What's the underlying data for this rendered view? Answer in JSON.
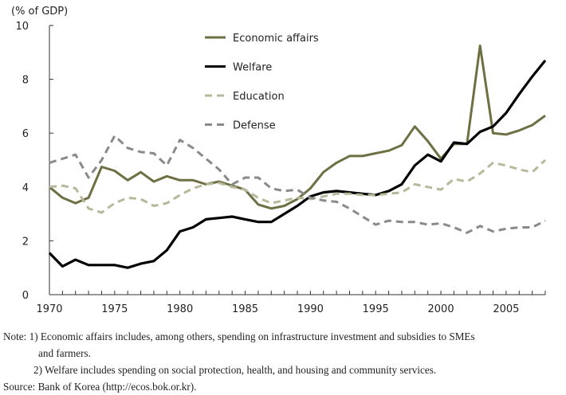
{
  "chart_data": {
    "type": "line",
    "ylabel": "(% of GDP)",
    "xlabel": "",
    "title": "",
    "xlim": [
      1970,
      2008
    ],
    "ylim": [
      0,
      10
    ],
    "x_ticks": [
      1970,
      1975,
      1980,
      1985,
      1990,
      1995,
      2000,
      2005
    ],
    "y_ticks": [
      0,
      2,
      4,
      6,
      8,
      10
    ],
    "grid": false,
    "legend_position": "top-center",
    "x": [
      1970,
      1971,
      1972,
      1973,
      1974,
      1975,
      1976,
      1977,
      1978,
      1979,
      1980,
      1981,
      1982,
      1983,
      1984,
      1985,
      1986,
      1987,
      1988,
      1989,
      1990,
      1991,
      1992,
      1993,
      1994,
      1995,
      1996,
      1997,
      1998,
      1999,
      2000,
      2001,
      2002,
      2003,
      2004,
      2005,
      2006,
      2007,
      2008
    ],
    "series": [
      {
        "name": "Economic affairs",
        "color": "#6e7044",
        "style": "solid",
        "values": [
          4.0,
          3.6,
          3.4,
          3.6,
          4.75,
          4.6,
          4.25,
          4.55,
          4.2,
          4.4,
          4.25,
          4.25,
          4.1,
          4.2,
          4.05,
          3.9,
          3.35,
          3.2,
          3.3,
          3.55,
          3.95,
          4.55,
          4.9,
          5.15,
          5.15,
          5.25,
          5.35,
          5.55,
          6.25,
          5.7,
          5.05,
          5.6,
          5.6,
          9.25,
          6.0,
          5.95,
          6.1,
          6.3,
          6.65
        ]
      },
      {
        "name": "Welfare",
        "color": "#000000",
        "style": "solid",
        "values": [
          1.55,
          1.05,
          1.3,
          1.1,
          1.1,
          1.1,
          1.0,
          1.15,
          1.25,
          1.65,
          2.35,
          2.5,
          2.8,
          2.85,
          2.9,
          2.8,
          2.7,
          2.7,
          3.0,
          3.3,
          3.65,
          3.8,
          3.85,
          3.8,
          3.75,
          3.7,
          3.85,
          4.1,
          4.8,
          5.2,
          4.95,
          5.65,
          5.6,
          6.05,
          6.25,
          6.75,
          7.45,
          8.1,
          8.7
        ]
      },
      {
        "name": "Education",
        "color": "#b8b89a",
        "style": "dashed",
        "values": [
          4.0,
          4.05,
          3.95,
          3.2,
          3.05,
          3.4,
          3.6,
          3.55,
          3.3,
          3.4,
          3.7,
          3.95,
          4.1,
          4.15,
          4.0,
          3.9,
          3.6,
          3.4,
          3.5,
          3.6,
          3.55,
          3.65,
          3.75,
          3.75,
          3.7,
          3.7,
          3.75,
          3.8,
          4.1,
          4.0,
          3.9,
          4.3,
          4.2,
          4.5,
          4.9,
          4.8,
          4.65,
          4.55,
          5.0
        ]
      },
      {
        "name": "Defense",
        "color": "#8a8a8a",
        "style": "dashed",
        "values": [
          4.9,
          5.05,
          5.2,
          4.35,
          5.0,
          5.9,
          5.45,
          5.3,
          5.25,
          4.8,
          5.75,
          5.45,
          5.05,
          4.65,
          4.1,
          4.35,
          4.35,
          3.95,
          3.85,
          3.9,
          3.6,
          3.5,
          3.45,
          3.2,
          2.9,
          2.6,
          2.75,
          2.7,
          2.7,
          2.6,
          2.65,
          2.5,
          2.3,
          2.55,
          2.35,
          2.45,
          2.5,
          2.5,
          2.75
        ]
      }
    ]
  },
  "notes": {
    "note_1_line1": "Note: 1) Economic affairs includes, among others, spending on infrastructure investment and subsidies to SMEs",
    "note_1_line2": "and farmers.",
    "note_2": "2) Welfare includes spending on social protection, health, and housing and community services.",
    "source": "Source: Bank of Korea (http://ecos.bok.or.kr)."
  }
}
